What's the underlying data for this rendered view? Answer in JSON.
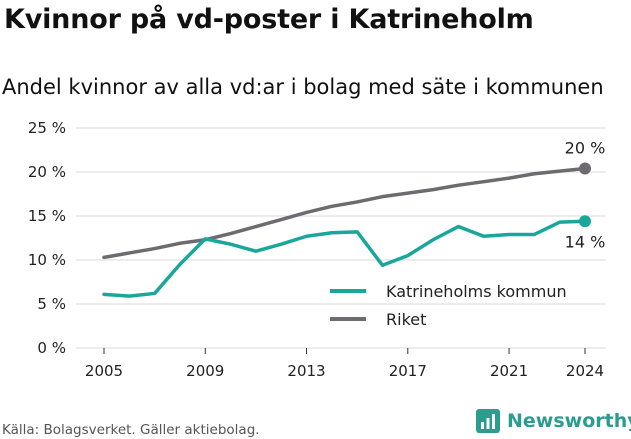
{
  "title": "Kvinnor på vd-poster i Katrineholm",
  "subtitle": "Andel kvinnor av alla vd:ar i bolag med säte i kommunen",
  "source": "Källa: Bolagsverket. Gäller aktiebolag.",
  "brand": "Newsworthy",
  "colors": {
    "katrineholm": "#1aa79b",
    "riket": "#6d6b70",
    "grid": "#d9d9d9"
  },
  "chart_data": {
    "type": "line",
    "x": [
      2005,
      2006,
      2007,
      2008,
      2009,
      2010,
      2011,
      2012,
      2013,
      2014,
      2015,
      2016,
      2017,
      2018,
      2019,
      2020,
      2021,
      2022,
      2023,
      2024
    ],
    "x_ticks": [
      2005,
      2009,
      2013,
      2017,
      2021,
      2024
    ],
    "x_tick_labels": [
      "2005",
      "2009",
      "2013",
      "2017",
      "2021",
      "2024"
    ],
    "ylim": [
      0,
      25
    ],
    "y_ticks": [
      0,
      5,
      10,
      15,
      20,
      25
    ],
    "y_tick_labels": [
      "0 %",
      "5 %",
      "10 %",
      "15 %",
      "20 %",
      "25 %"
    ],
    "grid": true,
    "legend": "bottom-right",
    "series": [
      {
        "name": "Katrineholms kommun",
        "color": "#1aa79b",
        "values": [
          6.1,
          5.9,
          6.2,
          9.5,
          12.4,
          11.8,
          11.0,
          11.8,
          12.7,
          13.1,
          13.2,
          9.4,
          10.5,
          12.3,
          13.8,
          12.7,
          12.9,
          12.9,
          14.3,
          14.4
        ],
        "end_label": "14 %"
      },
      {
        "name": "Riket",
        "color": "#6d6b70",
        "values": [
          10.3,
          10.8,
          11.3,
          11.9,
          12.3,
          13.0,
          13.8,
          14.6,
          15.4,
          16.1,
          16.6,
          17.2,
          17.6,
          18.0,
          18.5,
          18.9,
          19.3,
          19.8,
          20.1,
          20.4
        ],
        "end_label": "20 %"
      }
    ]
  }
}
